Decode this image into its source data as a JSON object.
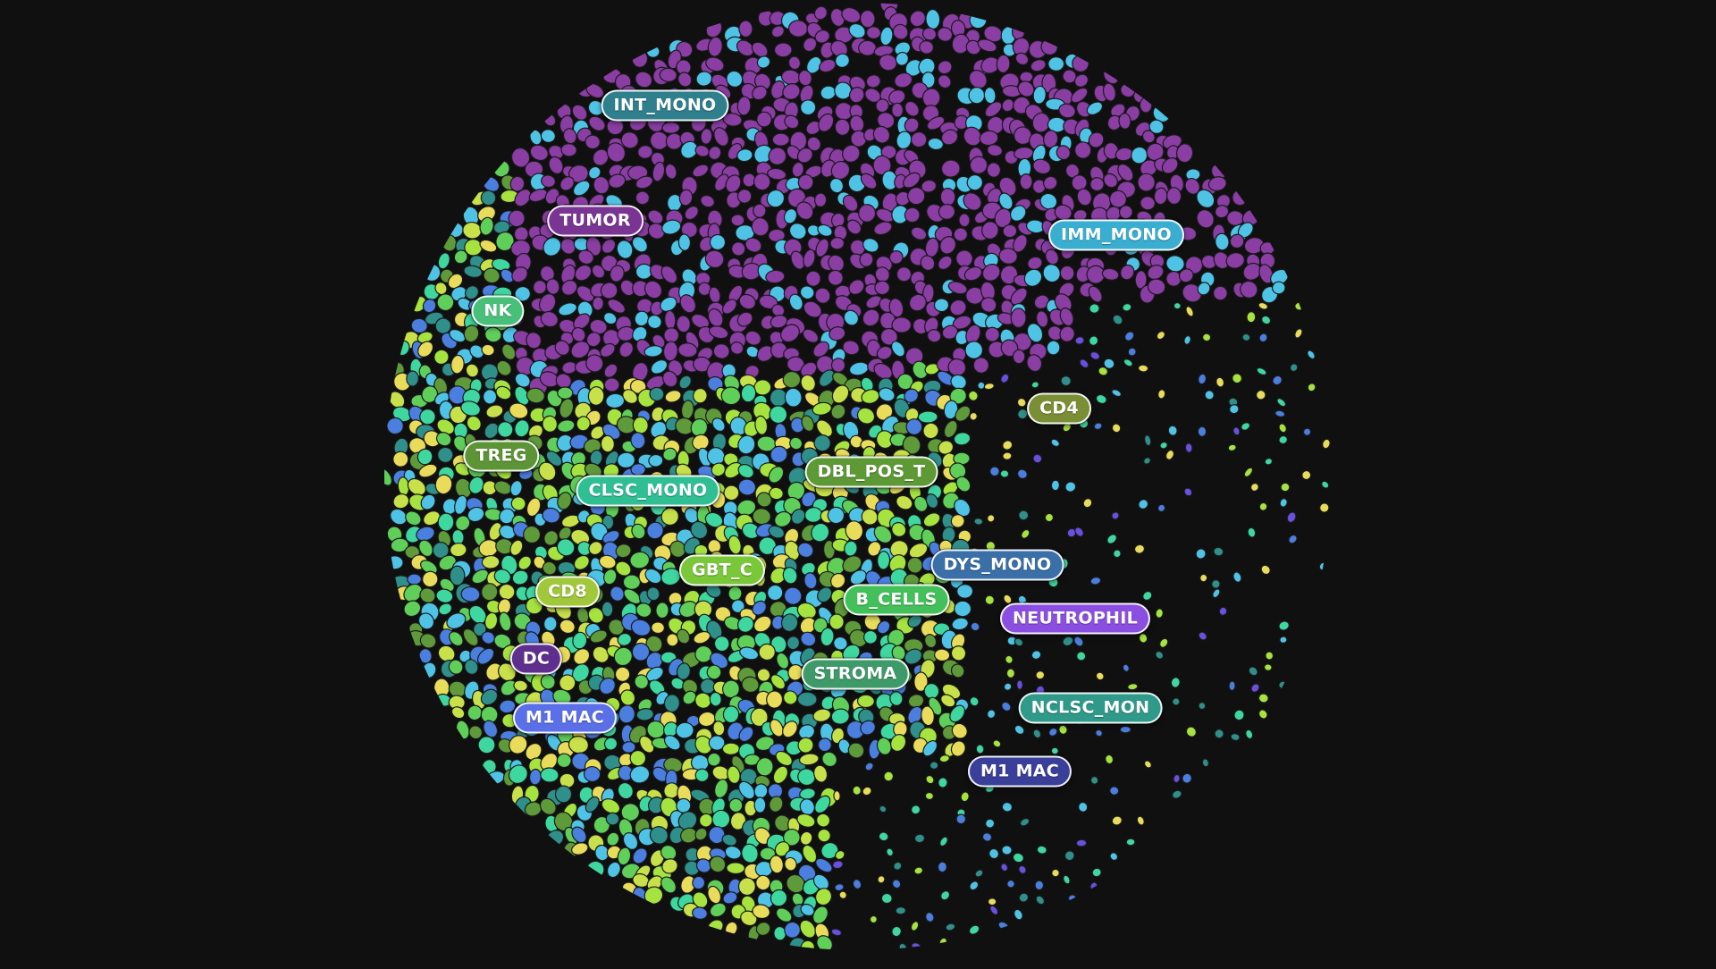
{
  "view": {
    "background_color": "#101010",
    "cell_outline_color": "#1a1a1a"
  },
  "palette": {
    "purple": "#8a3da3",
    "light_green": "#a6e33f",
    "green": "#5fcf5a",
    "yellow_green": "#c8e04a",
    "yellow": "#e8dc5a",
    "light_blue": "#4fc3e6",
    "blue": "#4a7fe0",
    "teal": "#2f8f8a",
    "mint": "#3fd7a0",
    "violet": "#6a4fe0",
    "olive": "#5e9a3a"
  },
  "regions": [
    {
      "name": "tumor-region",
      "palette": [
        "purple",
        "purple",
        "purple",
        "purple",
        "purple",
        "light_blue"
      ]
    },
    {
      "name": "lymphoid-region",
      "palette": [
        "light_green",
        "green",
        "yellow_green",
        "yellow",
        "light_blue",
        "blue",
        "teal",
        "mint",
        "olive"
      ]
    },
    {
      "name": "myeloid-region",
      "palette": [
        "light_blue",
        "blue",
        "teal",
        "light_green",
        "yellow",
        "violet",
        "mint"
      ]
    }
  ],
  "labels": [
    {
      "id": "int-mono",
      "text": "INT_MONO",
      "color": "#2f7f8c"
    },
    {
      "id": "tumor",
      "text": "TUMOR",
      "color": "#7a3594"
    },
    {
      "id": "imm-mono",
      "text": "IMM_MONO",
      "color": "#3aaed0"
    },
    {
      "id": "nk",
      "text": "NK",
      "color": "#49c07a"
    },
    {
      "id": "cd4",
      "text": "CD4",
      "color": "#7a8f35"
    },
    {
      "id": "treg",
      "text": "TREG",
      "color": "#5c9436"
    },
    {
      "id": "clsc-mono",
      "text": "CLSC_MONO",
      "color": "#2fbf93"
    },
    {
      "id": "dbl-pos-t",
      "text": "DBL_POS_T",
      "color": "#5d9935"
    },
    {
      "id": "dys-mono",
      "text": "DYS_MONO",
      "color": "#3a6fa8"
    },
    {
      "id": "gbt-c",
      "text": "GBT_C",
      "color": "#7ac83a"
    },
    {
      "id": "cd8",
      "text": "CD8",
      "color": "#a0c83a"
    },
    {
      "id": "b-cells",
      "text": "B_CELLS",
      "color": "#44c05a"
    },
    {
      "id": "neutrophil",
      "text": "NEUTROPHIL",
      "color": "#8a4fe0"
    },
    {
      "id": "dc",
      "text": "DC",
      "color": "#5f2f8f"
    },
    {
      "id": "stroma",
      "text": "STROMA",
      "color": "#3f9a6a"
    },
    {
      "id": "m1-mac-left",
      "text": "M1 MAC",
      "color": "#5a6fe8"
    },
    {
      "id": "nclsc-mon",
      "text": "NCLSC_MON",
      "color": "#2f9a8a"
    },
    {
      "id": "m1-mac-right",
      "text": "M1 MAC",
      "color": "#3a3f9a"
    }
  ]
}
